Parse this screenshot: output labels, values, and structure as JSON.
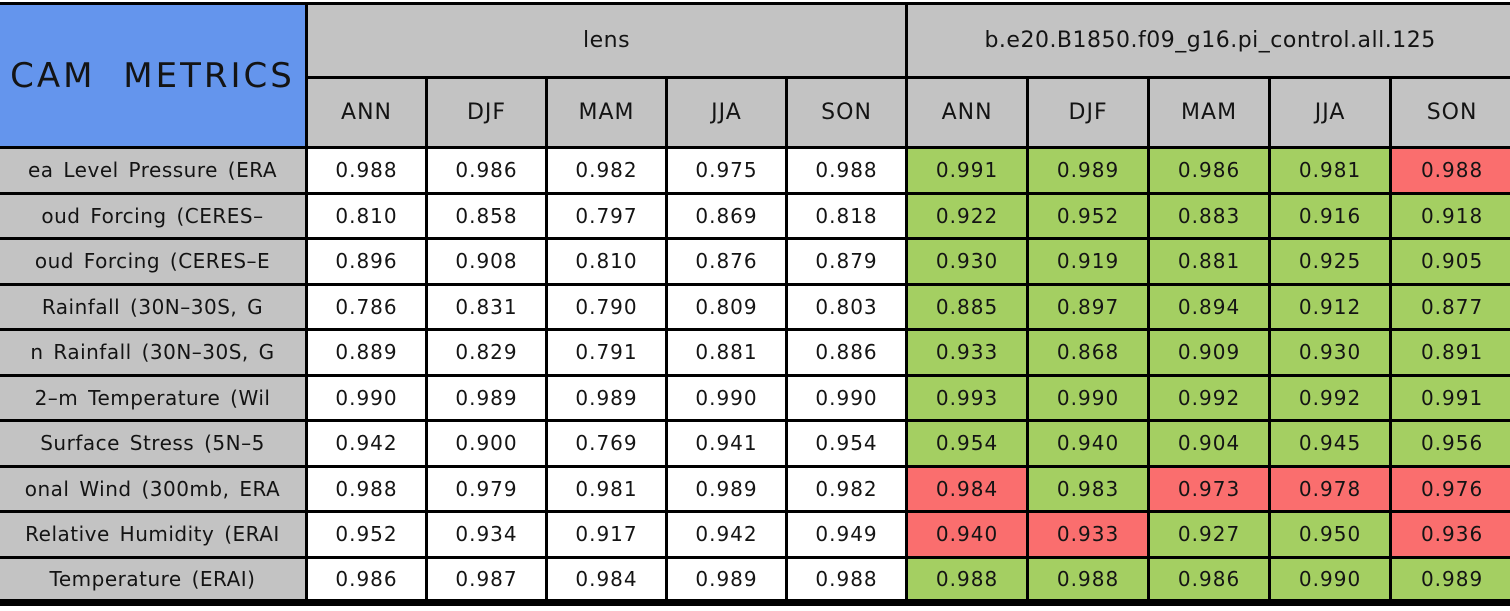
{
  "colors": {
    "blue": "#6495ED",
    "gray": "#C3C3C3",
    "green": "#A4CF62",
    "red": "#FA6E6E",
    "white": "#FFFFFF",
    "border": "#000000",
    "text": "#141414"
  },
  "chart_data": {
    "type": "table",
    "title": "CAM METRICS",
    "column_groups": [
      {
        "label": "lens",
        "seasons": [
          "ANN",
          "DJF",
          "MAM",
          "JJA",
          "SON"
        ]
      },
      {
        "label": "b.e20.B1850.f09_g16.pi_control.all.125",
        "seasons": [
          "ANN",
          "DJF",
          "MAM",
          "JJA",
          "SON"
        ]
      }
    ],
    "rows": [
      {
        "label": "ea Level Pressure (ERA",
        "lens": [
          "0.988",
          "0.986",
          "0.982",
          "0.975",
          "0.988"
        ],
        "case": [
          "0.991",
          "0.989",
          "0.986",
          "0.981",
          "0.988"
        ],
        "case_colors": [
          "green",
          "green",
          "green",
          "green",
          "red"
        ]
      },
      {
        "label": "oud Forcing (CERES–",
        "lens": [
          "0.810",
          "0.858",
          "0.797",
          "0.869",
          "0.818"
        ],
        "case": [
          "0.922",
          "0.952",
          "0.883",
          "0.916",
          "0.918"
        ],
        "case_colors": [
          "green",
          "green",
          "green",
          "green",
          "green"
        ]
      },
      {
        "label": "oud Forcing (CERES–E",
        "lens": [
          "0.896",
          "0.908",
          "0.810",
          "0.876",
          "0.879"
        ],
        "case": [
          "0.930",
          "0.919",
          "0.881",
          "0.925",
          "0.905"
        ],
        "case_colors": [
          "green",
          "green",
          "green",
          "green",
          "green"
        ]
      },
      {
        "label": "Rainfall (30N–30S, G",
        "lens": [
          "0.786",
          "0.831",
          "0.790",
          "0.809",
          "0.803"
        ],
        "case": [
          "0.885",
          "0.897",
          "0.894",
          "0.912",
          "0.877"
        ],
        "case_colors": [
          "green",
          "green",
          "green",
          "green",
          "green"
        ]
      },
      {
        "label": "n Rainfall (30N–30S, G",
        "lens": [
          "0.889",
          "0.829",
          "0.791",
          "0.881",
          "0.886"
        ],
        "case": [
          "0.933",
          "0.868",
          "0.909",
          "0.930",
          "0.891"
        ],
        "case_colors": [
          "green",
          "green",
          "green",
          "green",
          "green"
        ]
      },
      {
        "label": "2–m Temperature (Wil",
        "lens": [
          "0.990",
          "0.989",
          "0.989",
          "0.990",
          "0.990"
        ],
        "case": [
          "0.993",
          "0.990",
          "0.992",
          "0.992",
          "0.991"
        ],
        "case_colors": [
          "green",
          "green",
          "green",
          "green",
          "green"
        ]
      },
      {
        "label": "Surface Stress (5N–5",
        "lens": [
          "0.942",
          "0.900",
          "0.769",
          "0.941",
          "0.954"
        ],
        "case": [
          "0.954",
          "0.940",
          "0.904",
          "0.945",
          "0.956"
        ],
        "case_colors": [
          "green",
          "green",
          "green",
          "green",
          "green"
        ]
      },
      {
        "label": "onal Wind (300mb, ERA",
        "lens": [
          "0.988",
          "0.979",
          "0.981",
          "0.989",
          "0.982"
        ],
        "case": [
          "0.984",
          "0.983",
          "0.973",
          "0.978",
          "0.976"
        ],
        "case_colors": [
          "red",
          "green",
          "red",
          "red",
          "red"
        ]
      },
      {
        "label": "Relative Humidity (ERAI",
        "lens": [
          "0.952",
          "0.934",
          "0.917",
          "0.942",
          "0.949"
        ],
        "case": [
          "0.940",
          "0.933",
          "0.927",
          "0.950",
          "0.936"
        ],
        "case_colors": [
          "red",
          "red",
          "green",
          "green",
          "red"
        ]
      },
      {
        "label": "Temperature (ERAI)",
        "lens": [
          "0.986",
          "0.987",
          "0.984",
          "0.989",
          "0.988"
        ],
        "case": [
          "0.988",
          "0.988",
          "0.986",
          "0.990",
          "0.989"
        ],
        "case_colors": [
          "green",
          "green",
          "green",
          "green",
          "green"
        ]
      }
    ]
  }
}
